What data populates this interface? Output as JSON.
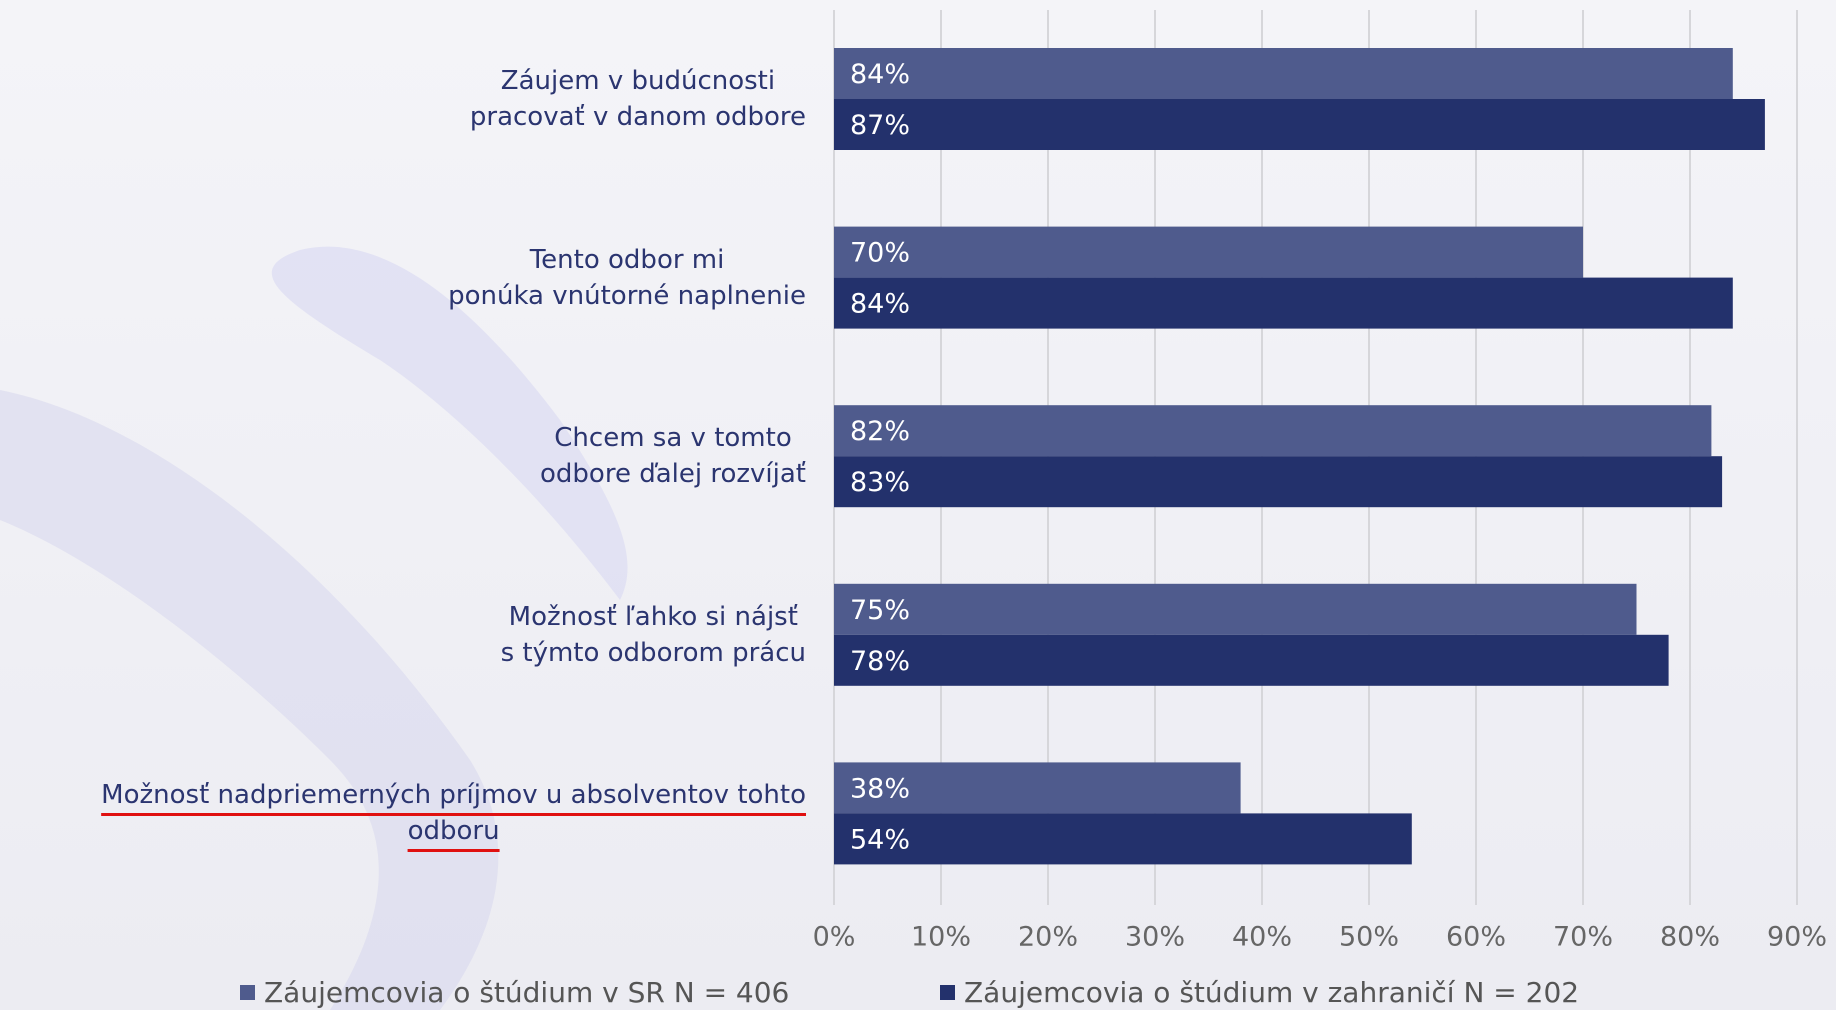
{
  "chart_data": {
    "type": "barh",
    "categories": [
      "Záujem v budúcnosti\npracovať v danom odbore",
      "Tento odbor mi\nponúka vnútorné naplnenie",
      "Chcem sa v tomto\nodbore ďalej rozvíjať",
      "Možnosť ľahko si nájsť\ns týmto odborom prácu",
      "Možnosť nadpriemerných príjmov u absolventov tohto\nodboru"
    ],
    "series": [
      {
        "name": "Záujemcovia o štúdium v SR N = 406",
        "color": "#4f5b8d",
        "values": [
          84,
          70,
          82,
          75,
          38
        ],
        "value_labels": [
          "84%",
          "70%",
          "82%",
          "75%",
          "38%"
        ]
      },
      {
        "name": "Záujemcovia o štúdium v zahraničí N = 202",
        "color": "#23316c",
        "values": [
          87,
          84,
          83,
          78,
          54
        ],
        "value_labels": [
          "87%",
          "84%",
          "83%",
          "78%",
          "54%"
        ]
      }
    ],
    "xlim": [
      0,
      90
    ],
    "xticks": [
      {
        "value": 0,
        "label": "0%"
      },
      {
        "value": 10,
        "label": "10%"
      },
      {
        "value": 20,
        "label": "20%"
      },
      {
        "value": 30,
        "label": "30%"
      },
      {
        "value": 40,
        "label": "40%"
      },
      {
        "value": 50,
        "label": "50%"
      },
      {
        "value": 60,
        "label": "60%"
      },
      {
        "value": 70,
        "label": "70%"
      },
      {
        "value": 80,
        "label": "80%"
      },
      {
        "value": 90,
        "label": "90%"
      }
    ],
    "grid": true,
    "legend": "bottom"
  }
}
